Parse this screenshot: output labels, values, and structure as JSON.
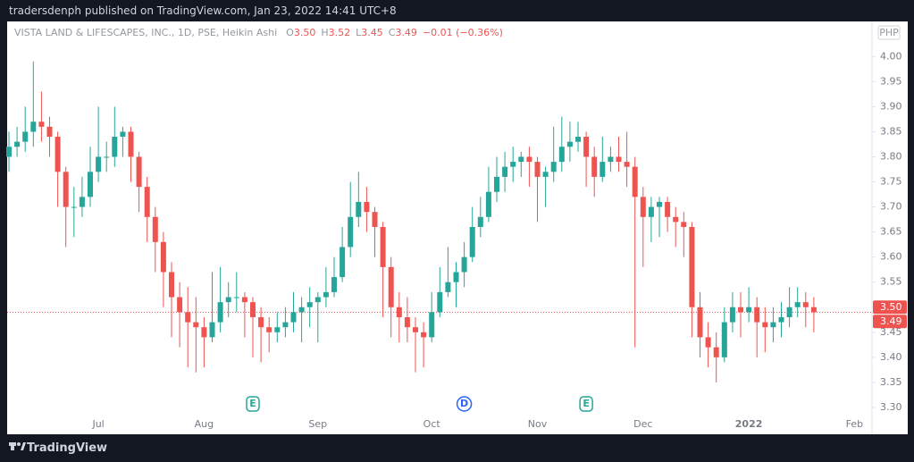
{
  "published": "tradersdenph published on TradingView.com, Jan 23, 2022 14:41 UTC+8",
  "brand": "TradingView",
  "chart_data": {
    "type": "candlestick",
    "title": "VISTA LAND & LIFESCAPES, INC., 1D, PSE, Heikin Ashi",
    "ohlc": [
      {
        "key": "O",
        "value": "3.50"
      },
      {
        "key": "H",
        "value": "3.52"
      },
      {
        "key": "L",
        "value": "3.45"
      },
      {
        "key": "C",
        "value": "3.49"
      }
    ],
    "change": "−0.01 (−0.36%)",
    "currency": "PHP",
    "up_color": "#26a69a",
    "down_color": "#ef5350",
    "ylim": [
      3.25,
      4.07
    ],
    "yticks": [
      {
        "value": 3.3,
        "label": "3.30"
      },
      {
        "value": 3.35,
        "label": "3.35"
      },
      {
        "value": 3.4,
        "label": "3.40"
      },
      {
        "value": 3.45,
        "label": "3.45"
      },
      {
        "value": 3.5,
        "label": "3.50"
      },
      {
        "value": 3.55,
        "label": "3.55"
      },
      {
        "value": 3.6,
        "label": "3.60"
      },
      {
        "value": 3.65,
        "label": "3.65"
      },
      {
        "value": 3.7,
        "label": "3.70"
      },
      {
        "value": 3.75,
        "label": "3.75"
      },
      {
        "value": 3.8,
        "label": "3.80"
      },
      {
        "value": 3.85,
        "label": "3.85"
      },
      {
        "value": 3.9,
        "label": "3.90"
      },
      {
        "value": 3.95,
        "label": "3.95"
      },
      {
        "value": 4,
        "label": "4.00"
      }
    ],
    "xticks": [
      {
        "value": 11,
        "label": "Jul"
      },
      {
        "value": 24,
        "label": "Aug"
      },
      {
        "value": 38,
        "label": "Sep"
      },
      {
        "value": 52,
        "label": "Oct"
      },
      {
        "value": 65,
        "label": "Nov"
      },
      {
        "value": 78,
        "label": "Dec"
      },
      {
        "value": 91,
        "label": "2022"
      },
      {
        "value": 104,
        "label": "Feb"
      }
    ],
    "price_labels": [
      {
        "value": 3.5,
        "label": "3.50"
      },
      {
        "value": 3.49,
        "label": "3.49"
      }
    ],
    "events": [
      {
        "index": 30,
        "label": "E",
        "color": "#26a69a"
      },
      {
        "index": 56,
        "label": "D",
        "color": "#2962ff"
      },
      {
        "index": 71,
        "label": "E",
        "color": "#26a69a"
      }
    ],
    "candles": [
      [
        3.8,
        3.85,
        3.77,
        3.82
      ],
      [
        3.82,
        3.86,
        3.8,
        3.83
      ],
      [
        3.83,
        3.9,
        3.81,
        3.85
      ],
      [
        3.85,
        3.99,
        3.82,
        3.87
      ],
      [
        3.87,
        3.93,
        3.83,
        3.86
      ],
      [
        3.86,
        3.88,
        3.8,
        3.84
      ],
      [
        3.84,
        3.85,
        3.7,
        3.77
      ],
      [
        3.77,
        3.78,
        3.62,
        3.7
      ],
      [
        3.7,
        3.74,
        3.64,
        3.7
      ],
      [
        3.7,
        3.76,
        3.68,
        3.72
      ],
      [
        3.72,
        3.82,
        3.7,
        3.77
      ],
      [
        3.77,
        3.9,
        3.75,
        3.8
      ],
      [
        3.8,
        3.83,
        3.77,
        3.8
      ],
      [
        3.8,
        3.9,
        3.78,
        3.84
      ],
      [
        3.84,
        3.86,
        3.8,
        3.85
      ],
      [
        3.85,
        3.86,
        3.75,
        3.8
      ],
      [
        3.8,
        3.81,
        3.69,
        3.74
      ],
      [
        3.74,
        3.76,
        3.63,
        3.68
      ],
      [
        3.68,
        3.7,
        3.57,
        3.63
      ],
      [
        3.63,
        3.65,
        3.5,
        3.57
      ],
      [
        3.57,
        3.59,
        3.44,
        3.52
      ],
      [
        3.52,
        3.55,
        3.42,
        3.49
      ],
      [
        3.49,
        3.54,
        3.38,
        3.47
      ],
      [
        3.47,
        3.52,
        3.37,
        3.46
      ],
      [
        3.46,
        3.48,
        3.38,
        3.44
      ],
      [
        3.44,
        3.57,
        3.43,
        3.47
      ],
      [
        3.47,
        3.58,
        3.45,
        3.51
      ],
      [
        3.51,
        3.55,
        3.48,
        3.52
      ],
      [
        3.52,
        3.57,
        3.49,
        3.52
      ],
      [
        3.52,
        3.53,
        3.44,
        3.51
      ],
      [
        3.51,
        3.52,
        3.4,
        3.48
      ],
      [
        3.48,
        3.5,
        3.39,
        3.46
      ],
      [
        3.46,
        3.48,
        3.41,
        3.45
      ],
      [
        3.45,
        3.49,
        3.43,
        3.46
      ],
      [
        3.46,
        3.5,
        3.44,
        3.47
      ],
      [
        3.47,
        3.53,
        3.45,
        3.49
      ],
      [
        3.49,
        3.52,
        3.43,
        3.5
      ],
      [
        3.5,
        3.54,
        3.46,
        3.51
      ],
      [
        3.51,
        3.53,
        3.43,
        3.52
      ],
      [
        3.52,
        3.58,
        3.5,
        3.53
      ],
      [
        3.53,
        3.6,
        3.52,
        3.56
      ],
      [
        3.56,
        3.66,
        3.55,
        3.62
      ],
      [
        3.62,
        3.75,
        3.6,
        3.68
      ],
      [
        3.68,
        3.77,
        3.66,
        3.71
      ],
      [
        3.71,
        3.74,
        3.65,
        3.69
      ],
      [
        3.69,
        3.7,
        3.6,
        3.66
      ],
      [
        3.66,
        3.67,
        3.48,
        3.58
      ],
      [
        3.58,
        3.6,
        3.44,
        3.5
      ],
      [
        3.5,
        3.53,
        3.43,
        3.48
      ],
      [
        3.48,
        3.52,
        3.43,
        3.46
      ],
      [
        3.46,
        3.48,
        3.37,
        3.45
      ],
      [
        3.45,
        3.47,
        3.38,
        3.44
      ],
      [
        3.44,
        3.53,
        3.43,
        3.49
      ],
      [
        3.49,
        3.58,
        3.48,
        3.53
      ],
      [
        3.53,
        3.62,
        3.52,
        3.55
      ],
      [
        3.55,
        3.59,
        3.5,
        3.57
      ],
      [
        3.57,
        3.63,
        3.54,
        3.6
      ],
      [
        3.6,
        3.7,
        3.59,
        3.66
      ],
      [
        3.66,
        3.72,
        3.64,
        3.68
      ],
      [
        3.68,
        3.78,
        3.67,
        3.73
      ],
      [
        3.73,
        3.8,
        3.71,
        3.76
      ],
      [
        3.76,
        3.81,
        3.73,
        3.78
      ],
      [
        3.78,
        3.82,
        3.75,
        3.79
      ],
      [
        3.79,
        3.81,
        3.76,
        3.8
      ],
      [
        3.8,
        3.82,
        3.74,
        3.79
      ],
      [
        3.79,
        3.8,
        3.67,
        3.76
      ],
      [
        3.76,
        3.78,
        3.7,
        3.77
      ],
      [
        3.77,
        3.86,
        3.75,
        3.79
      ],
      [
        3.79,
        3.88,
        3.77,
        3.82
      ],
      [
        3.82,
        3.87,
        3.79,
        3.83
      ],
      [
        3.83,
        3.87,
        3.81,
        3.84
      ],
      [
        3.84,
        3.85,
        3.74,
        3.8
      ],
      [
        3.8,
        3.82,
        3.72,
        3.76
      ],
      [
        3.76,
        3.84,
        3.75,
        3.79
      ],
      [
        3.79,
        3.82,
        3.77,
        3.8
      ],
      [
        3.8,
        3.84,
        3.77,
        3.79
      ],
      [
        3.79,
        3.85,
        3.74,
        3.78
      ],
      [
        3.78,
        3.8,
        3.42,
        3.72
      ],
      [
        3.72,
        3.74,
        3.58,
        3.68
      ],
      [
        3.68,
        3.72,
        3.63,
        3.7
      ],
      [
        3.7,
        3.72,
        3.64,
        3.71
      ],
      [
        3.71,
        3.72,
        3.65,
        3.68
      ],
      [
        3.68,
        3.7,
        3.62,
        3.67
      ],
      [
        3.67,
        3.69,
        3.6,
        3.66
      ],
      [
        3.66,
        3.67,
        3.44,
        3.5
      ],
      [
        3.5,
        3.53,
        3.4,
        3.44
      ],
      [
        3.44,
        3.47,
        3.38,
        3.42
      ],
      [
        3.42,
        3.45,
        3.35,
        3.4
      ],
      [
        3.4,
        3.5,
        3.39,
        3.47
      ],
      [
        3.47,
        3.53,
        3.45,
        3.5
      ],
      [
        3.5,
        3.53,
        3.44,
        3.49
      ],
      [
        3.49,
        3.54,
        3.47,
        3.5
      ],
      [
        3.5,
        3.52,
        3.4,
        3.47
      ],
      [
        3.47,
        3.5,
        3.41,
        3.46
      ],
      [
        3.46,
        3.5,
        3.43,
        3.47
      ],
      [
        3.47,
        3.51,
        3.44,
        3.48
      ],
      [
        3.48,
        3.54,
        3.46,
        3.5
      ],
      [
        3.5,
        3.54,
        3.48,
        3.51
      ],
      [
        3.51,
        3.53,
        3.46,
        3.5
      ],
      [
        3.5,
        3.52,
        3.45,
        3.49
      ]
    ]
  }
}
